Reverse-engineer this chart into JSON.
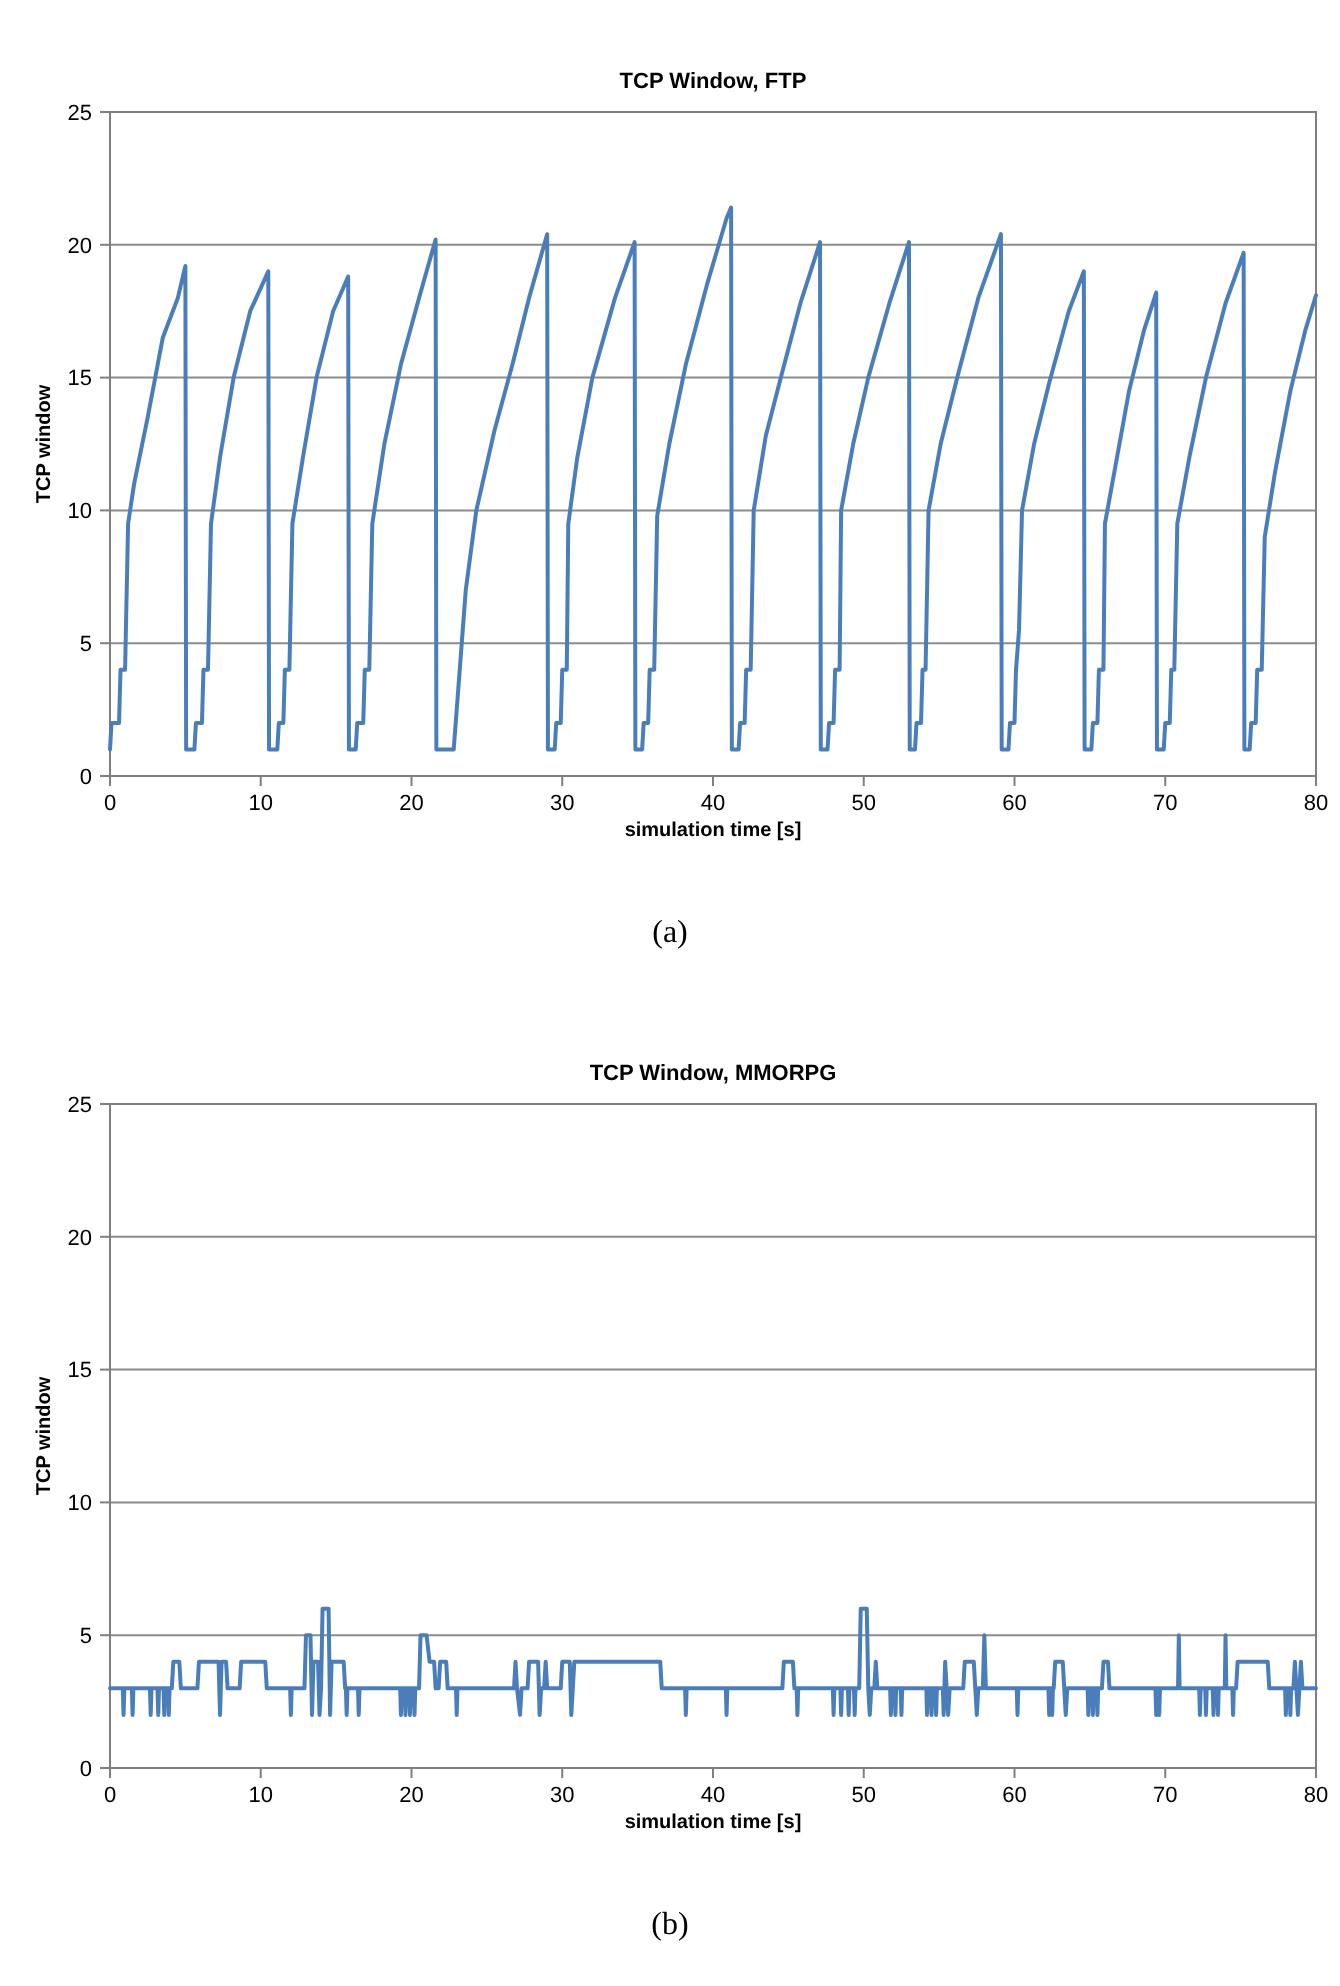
{
  "chart_data": [
    {
      "type": "line",
      "title": "TCP Window, FTP",
      "xlabel": "simulation time [s]",
      "ylabel": "TCP window",
      "xlim": [
        0,
        80
      ],
      "xticks": [
        0,
        10,
        20,
        30,
        40,
        50,
        60,
        70,
        80
      ],
      "ylim": [
        0,
        25
      ],
      "yticks": [
        0,
        5,
        10,
        15,
        20,
        25
      ],
      "grid": "y",
      "annotations": [
        "(a)"
      ],
      "series": [
        {
          "color": "#4a7ebb",
          "x": [
            0,
            0.1,
            0.6,
            0.7,
            1.0,
            1.2,
            1.6,
            2.5,
            3.5,
            4.5,
            5.0,
            5.05,
            5.6,
            5.7,
            6.1,
            6.2,
            6.5,
            6.7,
            7.3,
            8.2,
            9.3,
            10.5,
            10.55,
            11.1,
            11.2,
            11.5,
            11.6,
            11.9,
            12.1,
            12.8,
            13.7,
            14.8,
            15.8,
            15.85,
            16.3,
            16.4,
            16.8,
            16.9,
            17.2,
            17.4,
            18.2,
            19.3,
            20.5,
            21.6,
            21.65,
            22.8,
            23.2,
            23.6,
            24.3,
            25.5,
            26.7,
            27.8,
            29.0,
            29.05,
            29.5,
            29.6,
            29.9,
            30.0,
            30.3,
            30.4,
            31.0,
            32.0,
            33.5,
            34.8,
            34.85,
            35.3,
            35.4,
            35.7,
            35.8,
            36.1,
            36.3,
            37.1,
            38.2,
            39.6,
            40.9,
            41.2,
            41.25,
            41.7,
            41.8,
            42.1,
            42.2,
            42.5,
            42.7,
            43.5,
            44.5,
            45.8,
            47.1,
            47.15,
            47.6,
            47.7,
            48.0,
            48.1,
            48.4,
            48.5,
            49.3,
            50.3,
            51.7,
            53.0,
            53.05,
            53.4,
            53.5,
            53.8,
            53.9,
            54.1,
            54.3,
            55.1,
            56.2,
            57.6,
            59.1,
            59.15,
            59.6,
            59.7,
            60.0,
            60.1,
            60.3,
            60.5,
            61.3,
            62.3,
            63.6,
            64.6,
            64.65,
            65.1,
            65.2,
            65.5,
            65.6,
            65.9,
            66.0,
            66.8,
            67.6,
            68.6,
            69.4,
            69.45,
            69.9,
            70.0,
            70.3,
            70.4,
            70.6,
            70.8,
            71.6,
            72.7,
            74.0,
            75.2,
            75.25,
            75.6,
            75.7,
            76.0,
            76.1,
            76.4,
            76.6,
            77.3,
            78.3,
            79.3,
            80
          ],
          "values": [
            1,
            2,
            2,
            4,
            4,
            9.5,
            11,
            13.5,
            16.5,
            18,
            19.2,
            1,
            1,
            2,
            2,
            4,
            4,
            9.5,
            12,
            15,
            17.5,
            19,
            1,
            1,
            2,
            2,
            4,
            4,
            9.5,
            12,
            15,
            17.5,
            18.8,
            1,
            1,
            2,
            2,
            4,
            4,
            9.5,
            12.5,
            15.5,
            18,
            20.2,
            1,
            1,
            4,
            7,
            10,
            13,
            15.5,
            18,
            20.4,
            1,
            1,
            2,
            2,
            4,
            4,
            9.5,
            12,
            15,
            18,
            20.1,
            1,
            1,
            2,
            2,
            4,
            4,
            9.8,
            12.5,
            15.5,
            18.5,
            21,
            21.4,
            1,
            1,
            2,
            2,
            4,
            4,
            10,
            12.8,
            15,
            17.8,
            20.1,
            1,
            1,
            2,
            2,
            4,
            4,
            10,
            12.5,
            15,
            17.8,
            20.1,
            1,
            1,
            2,
            2,
            4,
            4,
            10,
            12.5,
            15,
            18,
            20.4,
            1,
            1,
            2,
            2,
            4,
            5.5,
            10,
            12.5,
            14.8,
            17.5,
            19,
            1,
            1,
            2,
            2,
            4,
            4,
            9.5,
            12,
            14.5,
            16.8,
            18.2,
            1,
            1,
            2,
            2,
            4,
            4,
            9.5,
            12,
            15,
            17.8,
            19.7,
            1,
            1,
            2,
            2,
            4,
            4,
            9,
            11.5,
            14.5,
            16.8,
            18.1
          ]
        }
      ]
    },
    {
      "type": "line",
      "title": "TCP Window, MMORPG",
      "xlabel": "simulation time [s]",
      "ylabel": "TCP window",
      "xlim": [
        0,
        80
      ],
      "xticks": [
        0,
        10,
        20,
        30,
        40,
        50,
        60,
        70,
        80
      ],
      "ylim": [
        0,
        25
      ],
      "yticks": [
        0,
        5,
        10,
        15,
        20,
        25
      ],
      "grid": "y",
      "annotations": [
        "(b)"
      ],
      "series": [
        {
          "color": "#4a7ebb",
          "x": [
            0,
            0.85,
            0.9,
            0.95,
            1.45,
            1.5,
            1.55,
            2.65,
            2.7,
            2.75,
            3.15,
            3.2,
            3.25,
            3.55,
            3.6,
            3.65,
            3.85,
            3.9,
            3.95,
            4.1,
            4.2,
            4.6,
            4.7,
            5.8,
            5.9,
            7.2,
            7.3,
            7.4,
            7.7,
            7.8,
            8.6,
            8.7,
            10.3,
            10.4,
            11.95,
            12.0,
            12.05,
            12.9,
            13.0,
            13.3,
            13.4,
            13.5,
            13.8,
            13.9,
            14.0,
            14.1,
            14.5,
            14.6,
            14.7,
            15.5,
            15.6,
            15.65,
            15.7,
            15.75,
            16.45,
            16.5,
            16.55,
            19.25,
            19.3,
            19.35,
            19.55,
            19.6,
            19.65,
            19.85,
            19.9,
            19.95,
            20.15,
            20.2,
            20.25,
            20.5,
            20.6,
            21.0,
            21.2,
            21.5,
            21.6,
            21.8,
            21.9,
            22.3,
            22.4,
            22.95,
            23.0,
            23.05,
            26.8,
            26.9,
            27.0,
            27.2,
            27.3,
            27.7,
            27.8,
            28.4,
            28.5,
            28.6,
            28.8,
            28.9,
            29.0,
            29.9,
            30.0,
            30.5,
            30.6,
            30.7,
            30.8,
            36.5,
            36.6,
            38.15,
            38.2,
            38.25,
            40.85,
            40.9,
            40.95,
            44.6,
            44.7,
            45.3,
            45.4,
            45.55,
            45.6,
            45.65,
            47.95,
            48.0,
            48.05,
            48.45,
            48.5,
            48.55,
            48.95,
            49.0,
            49.05,
            49.35,
            49.4,
            49.45,
            49.7,
            49.8,
            50.2,
            50.3,
            50.4,
            50.5,
            50.7,
            50.8,
            50.9,
            51.75,
            51.8,
            51.85,
            52.05,
            52.1,
            52.15,
            52.45,
            52.5,
            52.55,
            54.15,
            54.2,
            54.25,
            54.45,
            54.5,
            54.55,
            54.75,
            54.8,
            54.85,
            55.25,
            55.3,
            55.35,
            55.4,
            55.5,
            55.6,
            55.7,
            56.6,
            56.7,
            57.3,
            57.4,
            57.5,
            57.6,
            57.9,
            58.0,
            58.1,
            60.15,
            60.2,
            60.25,
            62.25,
            62.3,
            62.35,
            62.45,
            62.5,
            62.55,
            62.6,
            62.7,
            63.2,
            63.3,
            63.4,
            63.5,
            64.85,
            64.9,
            64.95,
            65.15,
            65.2,
            65.25,
            65.45,
            65.5,
            65.55,
            65.8,
            65.9,
            66.2,
            66.3,
            69.35,
            69.4,
            69.45,
            69.55,
            69.6,
            69.65,
            70.85,
            70.9,
            70.95,
            72.25,
            72.3,
            72.35,
            72.65,
            72.7,
            72.75,
            73.15,
            73.2,
            73.25,
            73.45,
            73.5,
            73.55,
            73.95,
            74.0,
            74.05,
            74.45,
            74.5,
            74.55,
            74.7,
            74.8,
            76.8,
            76.9,
            77.95,
            78.0,
            78.05,
            78.25,
            78.3,
            78.35,
            78.5,
            78.6,
            78.7,
            78.8,
            78.9,
            79.0,
            79.1,
            80
          ],
          "values": [
            3,
            3,
            2,
            3,
            3,
            2,
            3,
            3,
            2,
            3,
            3,
            2,
            3,
            3,
            2,
            3,
            3,
            2,
            3,
            3,
            4,
            4,
            3,
            3,
            4,
            4,
            2,
            4,
            4,
            3,
            3,
            4,
            4,
            3,
            3,
            2,
            3,
            3,
            5,
            5,
            2,
            4,
            4,
            2,
            3,
            6,
            6,
            2,
            4,
            4,
            3,
            3,
            2,
            3,
            3,
            2,
            3,
            3,
            2,
            3,
            3,
            2,
            3,
            3,
            2,
            3,
            3,
            2,
            3,
            3,
            5,
            5,
            4,
            4,
            3,
            3,
            4,
            4,
            3,
            3,
            2,
            3,
            3,
            4,
            3,
            2,
            3,
            3,
            4,
            4,
            2,
            3,
            3,
            4,
            3,
            3,
            4,
            4,
            2,
            3,
            4,
            4,
            3,
            3,
            2,
            3,
            3,
            2,
            3,
            3,
            4,
            4,
            3,
            3,
            2,
            3,
            3,
            2,
            3,
            3,
            2,
            3,
            3,
            2,
            3,
            3,
            2,
            3,
            3,
            6,
            6,
            3,
            2,
            3,
            3,
            4,
            3,
            3,
            2,
            3,
            3,
            2,
            3,
            3,
            2,
            3,
            3,
            2,
            3,
            3,
            2,
            3,
            3,
            2,
            3,
            3,
            2,
            3,
            4,
            3,
            2,
            3,
            3,
            4,
            4,
            3,
            2,
            3,
            3,
            5,
            3,
            3,
            2,
            3,
            3,
            2,
            3,
            3,
            2,
            3,
            3,
            4,
            4,
            3,
            2,
            3,
            3,
            2,
            3,
            3,
            2,
            3,
            3,
            2,
            3,
            3,
            4,
            4,
            3,
            3,
            2,
            3,
            3,
            2,
            3,
            3,
            5,
            3,
            3,
            2,
            3,
            3,
            2,
            3,
            3,
            2,
            3,
            3,
            2,
            3,
            3,
            5,
            3,
            3,
            2,
            3,
            3,
            4,
            4,
            3,
            3,
            2,
            3,
            3,
            2,
            3,
            3,
            4,
            3,
            2,
            3,
            4,
            3,
            3
          ]
        }
      ]
    }
  ]
}
